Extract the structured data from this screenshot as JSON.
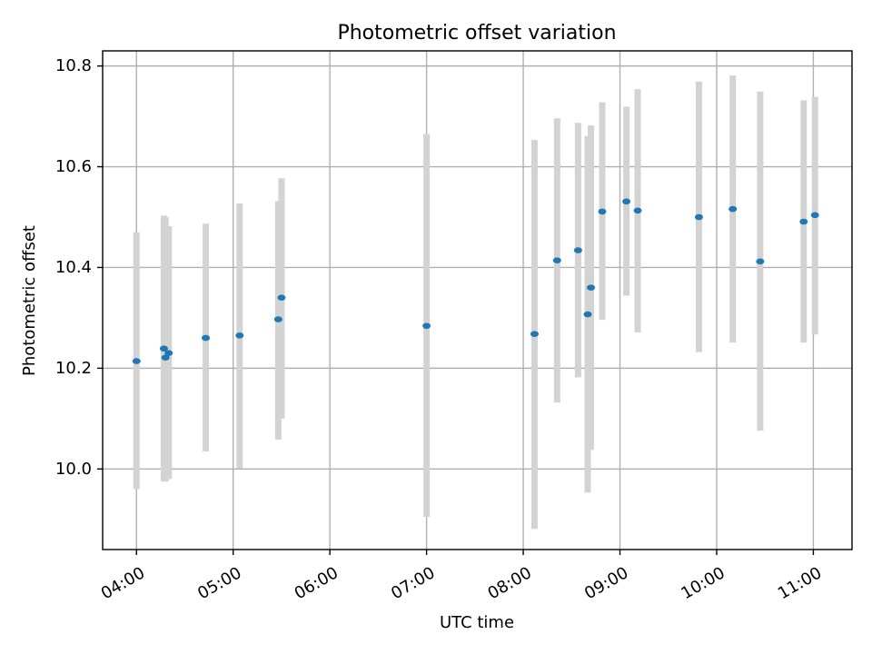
{
  "chart_data": {
    "type": "scatter",
    "title": "Photometric offset variation",
    "xlabel": "UTC time",
    "ylabel": "Photometric offset",
    "x_ticks": [
      "04:00",
      "05:00",
      "06:00",
      "07:00",
      "08:00",
      "09:00",
      "10:00",
      "11:00"
    ],
    "y_ticks": [
      "10.0",
      "10.2",
      "10.4",
      "10.6",
      "10.8"
    ],
    "xlim": [
      "03:39",
      "11:24"
    ],
    "ylim": [
      9.84,
      10.83
    ],
    "grid": true,
    "points": [
      {
        "x": "04:00",
        "y": 10.214,
        "lo": 9.96,
        "hi": 10.47
      },
      {
        "x": "04:17",
        "y": 10.239,
        "lo": 9.975,
        "hi": 10.503
      },
      {
        "x": "04:18",
        "y": 10.221,
        "lo": 9.975,
        "hi": 10.5
      },
      {
        "x": "04:20",
        "y": 10.23,
        "lo": 9.98,
        "hi": 10.482
      },
      {
        "x": "04:43",
        "y": 10.26,
        "lo": 10.035,
        "hi": 10.487
      },
      {
        "x": "05:04",
        "y": 10.265,
        "lo": 10.001,
        "hi": 10.527
      },
      {
        "x": "05:28",
        "y": 10.297,
        "lo": 10.058,
        "hi": 10.532
      },
      {
        "x": "05:30",
        "y": 10.34,
        "lo": 10.1,
        "hi": 10.577
      },
      {
        "x": "07:00",
        "y": 10.284,
        "lo": 9.905,
        "hi": 10.665
      },
      {
        "x": "08:07",
        "y": 10.268,
        "lo": 9.881,
        "hi": 10.653
      },
      {
        "x": "08:21",
        "y": 10.414,
        "lo": 10.132,
        "hi": 10.696
      },
      {
        "x": "08:34",
        "y": 10.434,
        "lo": 10.182,
        "hi": 10.687
      },
      {
        "x": "08:40",
        "y": 10.307,
        "lo": 9.953,
        "hi": 10.661
      },
      {
        "x": "08:42",
        "y": 10.36,
        "lo": 10.038,
        "hi": 10.682
      },
      {
        "x": "08:49",
        "y": 10.511,
        "lo": 10.296,
        "hi": 10.728
      },
      {
        "x": "09:04",
        "y": 10.531,
        "lo": 10.344,
        "hi": 10.719
      },
      {
        "x": "09:11",
        "y": 10.513,
        "lo": 10.271,
        "hi": 10.754
      },
      {
        "x": "09:49",
        "y": 10.5,
        "lo": 10.232,
        "hi": 10.769
      },
      {
        "x": "10:10",
        "y": 10.516,
        "lo": 10.251,
        "hi": 10.781
      },
      {
        "x": "10:27",
        "y": 10.412,
        "lo": 10.076,
        "hi": 10.749
      },
      {
        "x": "10:54",
        "y": 10.491,
        "lo": 10.251,
        "hi": 10.732
      },
      {
        "x": "11:01",
        "y": 10.504,
        "lo": 10.267,
        "hi": 10.739
      }
    ]
  }
}
